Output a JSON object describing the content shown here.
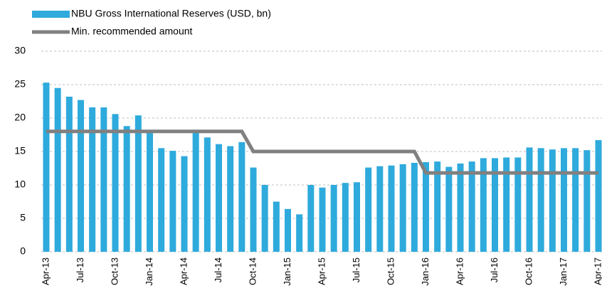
{
  "chart_data": {
    "type": "bar",
    "categories": [
      "Apr-13",
      null,
      null,
      "Jul-13",
      null,
      null,
      "Oct-13",
      null,
      null,
      "Jan-14",
      null,
      null,
      "Apr-14",
      null,
      null,
      "Jul-14",
      null,
      null,
      "Oct-14",
      null,
      null,
      "Jan-15",
      null,
      null,
      "Apr-15",
      null,
      null,
      "Jul-15",
      null,
      null,
      "Oct-15",
      null,
      null,
      "Jan-16",
      null,
      null,
      "Apr-16",
      null,
      null,
      "Jul-16",
      null,
      null,
      "Oct-16",
      null,
      null,
      "Jan-17",
      null,
      null,
      "Apr-17"
    ],
    "series": [
      {
        "name": "NBU Gross International Reserves (USD, bn)",
        "type": "bar",
        "color": "#2eaadc",
        "values": [
          25.3,
          24.5,
          23.2,
          22.7,
          21.6,
          21.6,
          20.6,
          18.8,
          20.4,
          17.8,
          15.5,
          15.1,
          14.3,
          17.9,
          17.1,
          16.1,
          15.8,
          16.4,
          12.6,
          10.0,
          7.5,
          6.4,
          5.6,
          10.0,
          9.6,
          10.0,
          10.3,
          10.4,
          12.6,
          12.8,
          12.9,
          13.1,
          13.3,
          13.4,
          13.5,
          12.7,
          13.2,
          13.5,
          14.0,
          14.0,
          14.1,
          14.1,
          15.6,
          15.5,
          15.3,
          15.5,
          15.5,
          15.2,
          16.7
        ]
      },
      {
        "name": "Min. recommended amount",
        "type": "line",
        "color": "#808080",
        "values": [
          18,
          18,
          18,
          18,
          18,
          18,
          18,
          18,
          18,
          18,
          18,
          18,
          18,
          18,
          18,
          18,
          18,
          18,
          15,
          15,
          15,
          15,
          15,
          15,
          15,
          15,
          15,
          15,
          15,
          15,
          15,
          15,
          15,
          11.8,
          11.8,
          11.8,
          11.8,
          11.8,
          11.8,
          11.8,
          11.8,
          11.8,
          11.8,
          11.8,
          11.8,
          11.8,
          11.8,
          11.8,
          11.8
        ]
      }
    ],
    "ylim": [
      0,
      30
    ],
    "yticks": [
      0,
      5,
      10,
      15,
      20,
      25,
      30
    ],
    "grid": true,
    "legend": "top-left"
  }
}
